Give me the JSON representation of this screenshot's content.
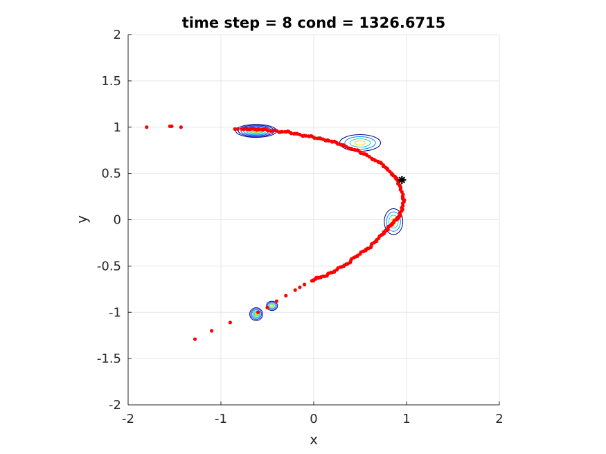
{
  "chart_data": {
    "type": "scatter",
    "title": "time step = 8 cond = 1326.6715",
    "xlabel": "x",
    "ylabel": "y",
    "xlim": [
      -2,
      2
    ],
    "ylim": [
      -2,
      2
    ],
    "xticks": [
      "-2",
      "-1",
      "0",
      "1",
      "2"
    ],
    "yticks": [
      "-2",
      "-1.5",
      "-1",
      "-0.5",
      "0",
      "0.5",
      "1",
      "1.5",
      "2"
    ],
    "grid": true,
    "colors": {
      "particles": "#ff0000",
      "estimate": "#000000",
      "contour_low": "#000080",
      "contour_high": "#ffd700",
      "grid": "#e6e6e6",
      "axis": "#262626"
    },
    "series": [
      {
        "type": "scatter",
        "x": [
          -1.8,
          -1.55,
          -1.53,
          -1.43,
          -0.85,
          -0.75,
          -0.72,
          -0.68,
          -0.64,
          -0.6,
          -0.55,
          -0.5,
          -0.45,
          -0.4,
          -0.35,
          -0.3,
          -0.25,
          -0.2,
          -0.15,
          -0.1,
          -0.05,
          0.0,
          0.05,
          0.1,
          0.15,
          0.2,
          0.25,
          0.3,
          0.35,
          0.4,
          0.45,
          0.5,
          0.55,
          0.6,
          0.65,
          0.7,
          0.75,
          0.78,
          0.82,
          0.85,
          0.88,
          0.91,
          0.93,
          0.95,
          0.96,
          0.97,
          0.96,
          0.95,
          0.93,
          0.91,
          0.89,
          0.86,
          0.83,
          0.8,
          0.77,
          0.74,
          0.7,
          0.66,
          0.62,
          0.58,
          0.54,
          0.5,
          0.45,
          0.4,
          0.35,
          0.3,
          0.25,
          0.2,
          0.15,
          0.1,
          0.05,
          0.02,
          -0.02,
          -0.1,
          -0.15,
          -0.2,
          -0.3,
          -0.4,
          -0.5,
          -0.6,
          -0.9,
          -1.1,
          -1.28
        ],
        "y": [
          1.0,
          1.01,
          1.01,
          1.0,
          0.98,
          0.98,
          0.98,
          0.98,
          0.98,
          0.98,
          0.97,
          0.97,
          0.96,
          0.96,
          0.95,
          0.95,
          0.94,
          0.93,
          0.92,
          0.91,
          0.9,
          0.89,
          0.88,
          0.87,
          0.86,
          0.84,
          0.83,
          0.81,
          0.79,
          0.77,
          0.75,
          0.73,
          0.71,
          0.68,
          0.65,
          0.62,
          0.59,
          0.56,
          0.52,
          0.49,
          0.45,
          0.41,
          0.36,
          0.3,
          0.24,
          0.2,
          0.15,
          0.1,
          0.06,
          0.03,
          0.0,
          -0.03,
          -0.06,
          -0.09,
          -0.12,
          -0.16,
          -0.2,
          -0.24,
          -0.28,
          -0.31,
          -0.34,
          -0.37,
          -0.4,
          -0.44,
          -0.48,
          -0.51,
          -0.54,
          -0.57,
          -0.59,
          -0.61,
          -0.63,
          -0.64,
          -0.66,
          -0.7,
          -0.73,
          -0.76,
          -0.82,
          -0.88,
          -0.95,
          -1.0,
          -1.11,
          -1.2,
          -1.29
        ]
      },
      {
        "type": "marker",
        "x": [
          0.95
        ],
        "y": [
          0.43
        ]
      }
    ],
    "contours": [
      {
        "cx": -0.62,
        "cy": 0.96,
        "rx": 0.22,
        "ry": 0.07,
        "levels": 8
      },
      {
        "cx": 0.5,
        "cy": 0.83,
        "rx": 0.22,
        "ry": 0.09,
        "levels": 4
      },
      {
        "cx": 0.86,
        "cy": -0.02,
        "rx": 0.1,
        "ry": 0.14,
        "levels": 4
      },
      {
        "cx": -0.62,
        "cy": -1.02,
        "rx": 0.07,
        "ry": 0.07,
        "levels": 6
      },
      {
        "cx": -0.45,
        "cy": -0.93,
        "rx": 0.06,
        "ry": 0.05,
        "levels": 5
      }
    ]
  }
}
